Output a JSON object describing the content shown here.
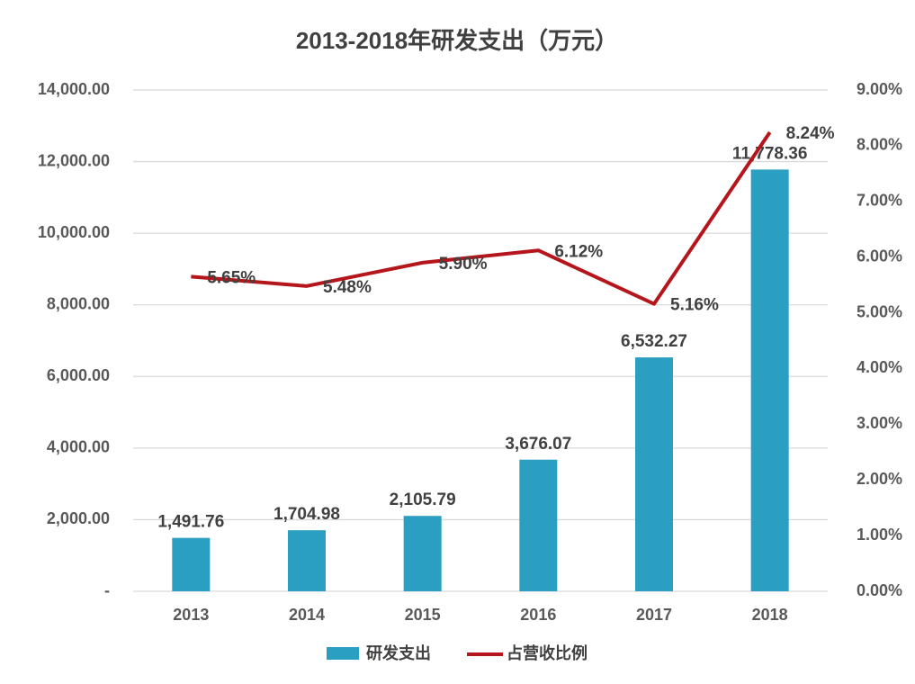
{
  "chart_data": {
    "type": "combo",
    "title": "2013-2018年研发支出（万元）",
    "categories": [
      "2013",
      "2014",
      "2015",
      "2016",
      "2017",
      "2018"
    ],
    "series": [
      {
        "name": "研发支出",
        "type": "bar",
        "color": "#2a9fc1",
        "axis": "y",
        "values": [
          1491.76,
          1704.98,
          2105.79,
          3676.07,
          6532.27,
          11778.36
        ],
        "value_labels": [
          "1,491.76",
          "1,704.98",
          "2,105.79",
          "3,676.07",
          "6,532.27",
          "11,778.36"
        ]
      },
      {
        "name": "占营收比例",
        "type": "line",
        "color": "#b5161b",
        "axis": "y2",
        "values": [
          5.65,
          5.48,
          5.9,
          6.12,
          5.16,
          8.24
        ],
        "value_labels": [
          "5.65%",
          "5.48%",
          "5.90%",
          "6.12%",
          "5.16%",
          "8.24%"
        ]
      }
    ],
    "ylim": [
      0,
      14000
    ],
    "yticks": [
      {
        "value": 0,
        "label": "-"
      },
      {
        "value": 2000,
        "label": "2,000.00"
      },
      {
        "value": 4000,
        "label": "4,000.00"
      },
      {
        "value": 6000,
        "label": "6,000.00"
      },
      {
        "value": 8000,
        "label": "8,000.00"
      },
      {
        "value": 10000,
        "label": "10,000.00"
      },
      {
        "value": 12000,
        "label": "12,000.00"
      },
      {
        "value": 14000,
        "label": "14,000.00"
      }
    ],
    "y2lim": [
      0,
      9
    ],
    "y2ticks": [
      {
        "value": 0,
        "label": "0.00%"
      },
      {
        "value": 1,
        "label": "1.00%"
      },
      {
        "value": 2,
        "label": "2.00%"
      },
      {
        "value": 3,
        "label": "3.00%"
      },
      {
        "value": 4,
        "label": "4.00%"
      },
      {
        "value": 5,
        "label": "5.00%"
      },
      {
        "value": 6,
        "label": "6.00%"
      },
      {
        "value": 7,
        "label": "7.00%"
      },
      {
        "value": 8,
        "label": "8.00%"
      },
      {
        "value": 9,
        "label": "9.00%"
      }
    ],
    "grid": true,
    "legend": "bottom"
  }
}
